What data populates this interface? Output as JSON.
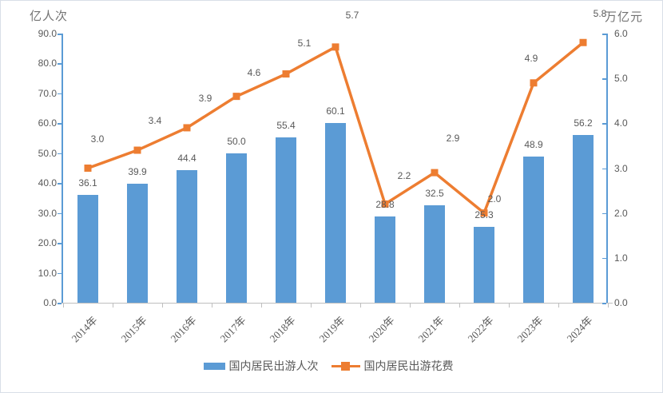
{
  "chart_data": {
    "type": "bar",
    "subtype": "combo-bar-line",
    "categories": [
      "2014年",
      "2015年",
      "2016年",
      "2017年",
      "2018年",
      "2019年",
      "2020年",
      "2021年",
      "2022年",
      "2023年",
      "2024年"
    ],
    "series": [
      {
        "name": "国内居民出游人次",
        "chart_type": "bar",
        "axis": "left",
        "color": "#5b9bd5",
        "values": [
          36.1,
          39.9,
          44.4,
          50.0,
          55.4,
          60.1,
          28.8,
          32.5,
          25.3,
          48.9,
          56.2
        ]
      },
      {
        "name": "国内居民出游花费",
        "chart_type": "line",
        "axis": "right",
        "color": "#ed7d31",
        "values": [
          3.0,
          3.4,
          3.9,
          4.6,
          5.1,
          5.7,
          2.2,
          2.9,
          2.0,
          4.9,
          5.8
        ]
      }
    ],
    "left_axis": {
      "title": "亿人次",
      "min": 0.0,
      "max": 90.0,
      "step": 10.0
    },
    "right_axis": {
      "title": "万亿元",
      "min": 0.0,
      "max": 6.0,
      "step": 1.0
    },
    "legend_position": "bottom",
    "grid": false,
    "data_labels": true,
    "title": ""
  }
}
